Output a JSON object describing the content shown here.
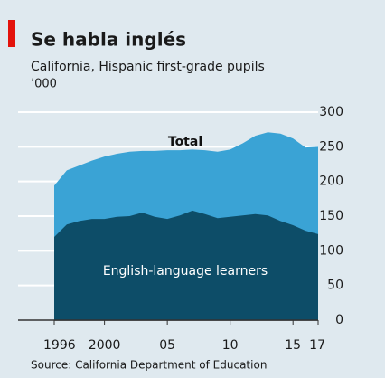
{
  "chart_data": {
    "type": "area",
    "title": "Se habla inglés",
    "subtitle": "California, Hispanic first-grade pupils",
    "unit": "’000",
    "source": "Source: California Department of Education",
    "x": [
      1996,
      1997,
      1998,
      1999,
      2000,
      2001,
      2002,
      2003,
      2004,
      2005,
      2006,
      2007,
      2008,
      2009,
      2010,
      2011,
      2012,
      2013,
      2014,
      2015,
      2016,
      2017
    ],
    "series": [
      {
        "name": "Total",
        "color": "#3aa3d5",
        "values": [
          194,
          216,
          223,
          230,
          236,
          240,
          243,
          244,
          244,
          245,
          245,
          246,
          245,
          243,
          246,
          255,
          266,
          271,
          269,
          262,
          249,
          250
        ]
      },
      {
        "name": "English-language learners",
        "color": "#0d4d68",
        "values": [
          120,
          138,
          143,
          146,
          146,
          149,
          150,
          155,
          149,
          146,
          151,
          158,
          153,
          147,
          149,
          151,
          153,
          151,
          143,
          137,
          129,
          124
        ]
      }
    ],
    "xlim": [
      1996,
      2017
    ],
    "xticks": [
      1996,
      2000,
      {
        "value": 2005,
        "label": "05"
      },
      {
        "value": 2010,
        "label": "10"
      },
      {
        "value": 2015,
        "label": "15"
      },
      {
        "value": 2017,
        "label": "17"
      }
    ],
    "ylim": [
      0,
      300
    ],
    "yticks": [
      0,
      50,
      100,
      150,
      200,
      250,
      300
    ],
    "grid": true,
    "y_axis_side": "right"
  }
}
